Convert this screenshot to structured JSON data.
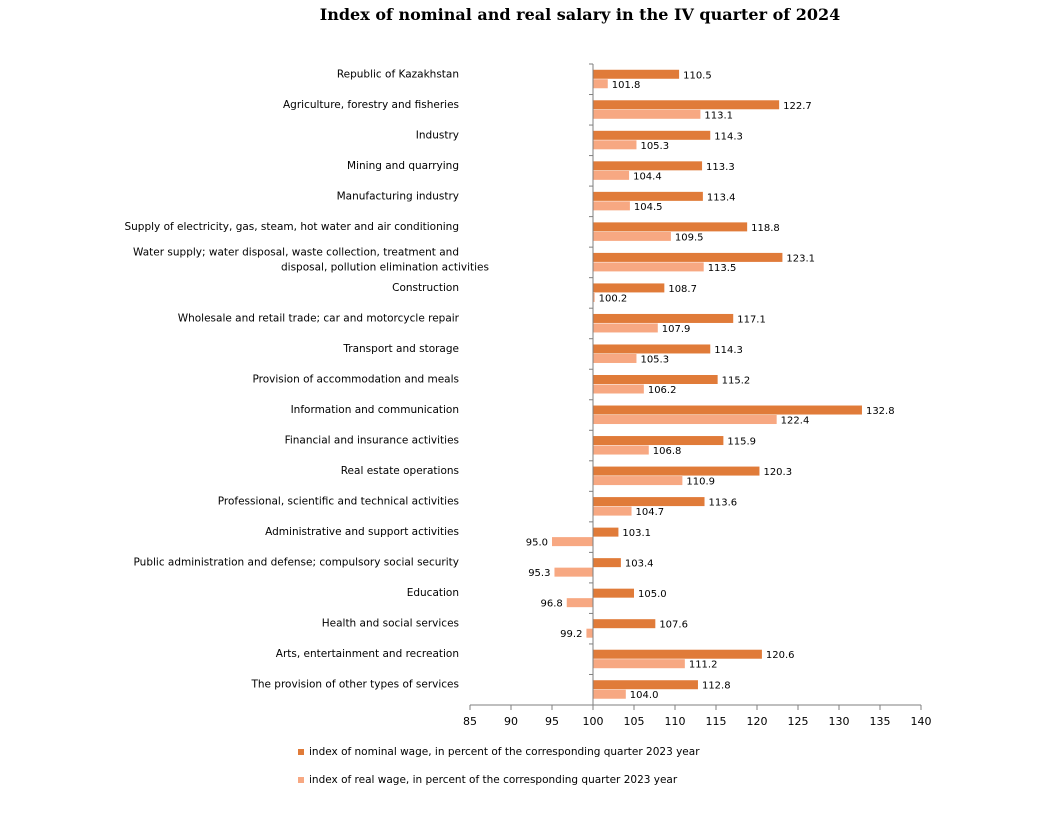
{
  "chart_data": {
    "type": "bar",
    "orientation": "horizontal",
    "title": "Index of nominal and real salary in the IV quarter of 2024",
    "categories": [
      "Republic of Kazakhstan",
      "Agriculture, forestry and fisheries",
      "Industry",
      "Mining and quarrying",
      "Manufacturing industry",
      "Supply of electricity, gas, steam, hot water and air conditioning",
      "Water supply;  water disposal, waste collection, treatment and disposal, pollution elimination activities",
      "Construction",
      "Wholesale and retail trade; car and motorcycle repair",
      "Transport and storage",
      "Provision of accommodation and meals",
      "Information and communication",
      "Financial and insurance activities",
      "Real estate operations",
      "Professional, scientific and technical activities",
      "Administrative and support activities",
      "Public administration and defense; compulsory social security",
      "Education",
      "Health and social services",
      "Arts, entertainment and recreation",
      "The provision of other types of services"
    ],
    "series": [
      {
        "name": "index of nominal wage, in percent of the corresponding quarter 2023 year",
        "color": "#e07b39",
        "values": [
          110.5,
          122.7,
          114.3,
          113.3,
          113.4,
          118.8,
          123.1,
          108.7,
          117.1,
          114.3,
          115.2,
          132.8,
          115.9,
          120.3,
          113.6,
          103.1,
          103.4,
          105.0,
          107.6,
          120.6,
          112.8
        ]
      },
      {
        "name": "index of real wage, in percent of the corresponding quarter 2023 year",
        "color": "#f7a882",
        "values": [
          101.8,
          113.1,
          105.3,
          104.4,
          104.5,
          109.5,
          113.5,
          100.2,
          107.9,
          105.3,
          106.2,
          122.4,
          106.8,
          110.9,
          104.7,
          95.0,
          95.3,
          96.8,
          99.2,
          111.2,
          104.0
        ]
      }
    ],
    "xlim": [
      85,
      140
    ],
    "xticks": [
      85,
      90,
      95,
      100,
      105,
      110,
      115,
      120,
      125,
      130,
      135,
      140
    ],
    "base_value": 100,
    "legend_position": "bottom",
    "grid": false
  }
}
